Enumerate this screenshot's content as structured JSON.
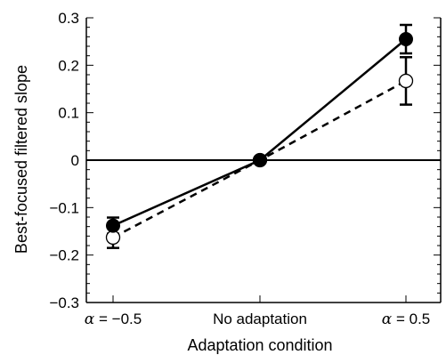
{
  "chart_data": {
    "type": "line",
    "title": "",
    "xlabel": "Adaptation condition",
    "ylabel": "Best-focused filtered slope",
    "categories": [
      {
        "symbol": "α",
        "rest": " = −0.5"
      },
      {
        "symbol": "",
        "rest": "No adaptation"
      },
      {
        "symbol": "α",
        "rest": " = 0.5"
      }
    ],
    "ylim": [
      -0.3,
      0.3
    ],
    "yticks": [
      "0.3",
      "0.2",
      "0.1",
      "0",
      "−0.1",
      "−0.2",
      "−0.3"
    ],
    "yticks_values": [
      0.3,
      0.2,
      0.1,
      0,
      -0.1,
      -0.2,
      -0.3
    ],
    "grid": false,
    "zero_line": true,
    "series": [
      {
        "style": "solid",
        "marker": "filled-circle",
        "values": [
          -0.138,
          0.0,
          0.255
        ],
        "errors": [
          0.017,
          0.0,
          0.03
        ]
      },
      {
        "style": "dashed",
        "marker": "open-circle",
        "values": [
          -0.163,
          0.0,
          0.167
        ],
        "errors": [
          0.022,
          0.0,
          0.05
        ]
      }
    ]
  }
}
